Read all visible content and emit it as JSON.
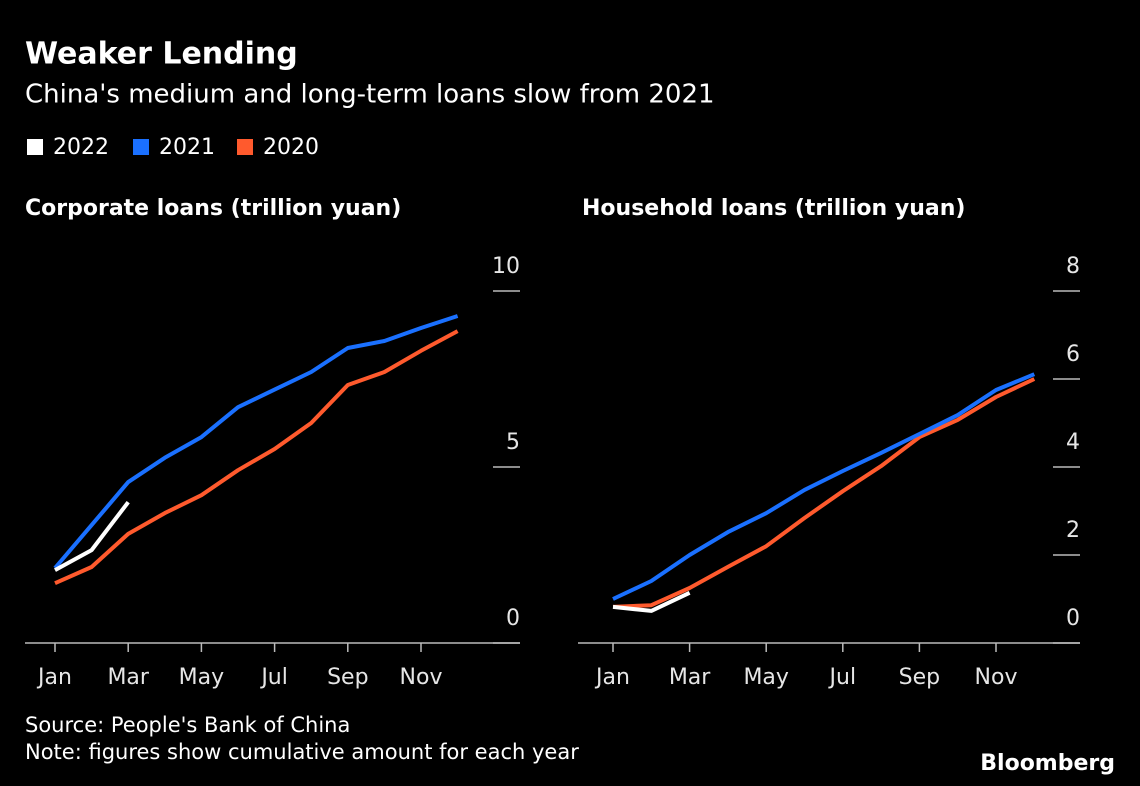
{
  "title": "Weaker Lending",
  "subtitle": "China's medium and long-term loans slow from 2021",
  "source": "Source: People's Bank of China",
  "note": "Note: figures show cumulative amount for each year",
  "brand": "Bloomberg",
  "chart_data": [
    {
      "type": "line",
      "title": "Corporate loans (trillion yuan)",
      "categories": [
        "Jan",
        null,
        "Mar",
        null,
        "May",
        null,
        "Jul",
        null,
        "Sep",
        null,
        "Nov",
        null
      ],
      "series": [
        {
          "name": "2022",
          "color": "#ffffff",
          "values": [
            2.07,
            2.64,
            4.0,
            null,
            null,
            null,
            null,
            null,
            null,
            null,
            null,
            null
          ]
        },
        {
          "name": "2021",
          "color": "#1a70ff",
          "values": [
            2.13,
            3.35,
            4.57,
            5.26,
            5.85,
            6.7,
            7.2,
            7.7,
            8.38,
            8.58,
            8.95,
            9.29
          ]
        },
        {
          "name": "2020",
          "color": "#ff5a2d",
          "values": [
            1.7,
            2.16,
            3.1,
            3.69,
            4.2,
            4.91,
            5.51,
            6.25,
            7.33,
            7.7,
            8.3,
            8.86
          ]
        }
      ],
      "ylim": [
        0,
        10
      ],
      "yticks": [
        0,
        5,
        10
      ]
    },
    {
      "type": "line",
      "title": "Household loans (trillion yuan)",
      "categories": [
        "Jan",
        null,
        "Mar",
        null,
        "May",
        null,
        "Jul",
        null,
        "Sep",
        null,
        "Nov",
        null
      ],
      "series": [
        {
          "name": "2022",
          "color": "#ffffff",
          "values": [
            0.82,
            0.73,
            1.14,
            null,
            null,
            null,
            null,
            null,
            null,
            null,
            null,
            null
          ]
        },
        {
          "name": "2021",
          "color": "#1a70ff",
          "values": [
            1.0,
            1.41,
            2.0,
            2.52,
            2.95,
            3.48,
            3.91,
            4.32,
            4.75,
            5.18,
            5.75,
            6.11
          ]
        },
        {
          "name": "2020",
          "color": "#ff5a2d",
          "values": [
            0.82,
            0.86,
            1.25,
            1.73,
            2.2,
            2.84,
            3.45,
            4.02,
            4.68,
            5.07,
            5.59,
            6.0
          ]
        }
      ],
      "ylim": [
        0,
        8
      ],
      "yticks": [
        0,
        2,
        4,
        6,
        8
      ]
    }
  ]
}
